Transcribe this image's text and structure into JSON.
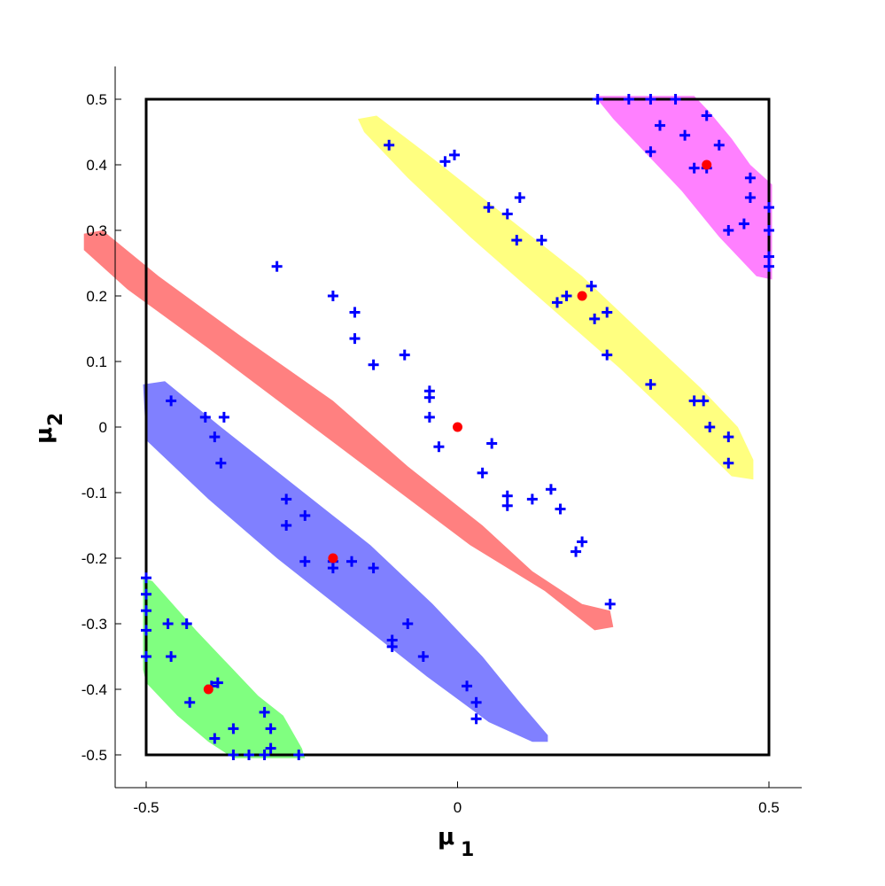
{
  "chart_data": {
    "type": "scatter",
    "xlabel": "μ",
    "xlabel_sub": "1",
    "ylabel": "μ",
    "ylabel_sub": "2",
    "xlim": [
      -0.55,
      0.55
    ],
    "ylim": [
      -0.55,
      0.55
    ],
    "x_ticks": [
      -0.5,
      0,
      0.5
    ],
    "x_tick_labels": [
      "-0.5",
      "0",
      "0.5"
    ],
    "y_ticks": [
      0.5,
      0.4,
      0.3,
      0.2,
      0.1,
      0,
      -0.1,
      -0.2,
      -0.3,
      -0.4,
      -0.5
    ],
    "y_tick_labels": [
      "0.5",
      "0.4",
      "0.3",
      "0.2",
      "0.1",
      "0",
      "-0.1",
      "-0.2",
      "-0.3",
      "-0.4",
      "-0.5"
    ],
    "grid": false,
    "box": {
      "x": [
        -0.5,
        0.5
      ],
      "y": [
        -0.5,
        0.5
      ],
      "color": "#000000"
    },
    "regions": [
      {
        "color": "#ff80ff",
        "polygon": [
          [
            0.22,
            0.505
          ],
          [
            0.38,
            0.505
          ],
          [
            0.405,
            0.48
          ],
          [
            0.44,
            0.44
          ],
          [
            0.47,
            0.4
          ],
          [
            0.505,
            0.37
          ],
          [
            0.505,
            0.225
          ],
          [
            0.48,
            0.23
          ],
          [
            0.42,
            0.29
          ],
          [
            0.36,
            0.36
          ],
          [
            0.3,
            0.42
          ],
          [
            0.25,
            0.47
          ]
        ]
      },
      {
        "color": "#ffff80",
        "polygon": [
          [
            -0.16,
            0.47
          ],
          [
            -0.13,
            0.475
          ],
          [
            -0.04,
            0.41
          ],
          [
            0.08,
            0.32
          ],
          [
            0.2,
            0.23
          ],
          [
            0.3,
            0.14
          ],
          [
            0.39,
            0.06
          ],
          [
            0.45,
            0.0
          ],
          [
            0.475,
            -0.05
          ],
          [
            0.475,
            -0.08
          ],
          [
            0.44,
            -0.075
          ],
          [
            0.36,
            0.0
          ],
          [
            0.26,
            0.09
          ],
          [
            0.14,
            0.19
          ],
          [
            0.02,
            0.29
          ],
          [
            -0.08,
            0.38
          ],
          [
            -0.15,
            0.45
          ]
        ]
      },
      {
        "color": "#ff8080",
        "polygon": [
          [
            -0.6,
            0.295
          ],
          [
            -0.57,
            0.3
          ],
          [
            -0.48,
            0.23
          ],
          [
            -0.35,
            0.14
          ],
          [
            -0.2,
            0.04
          ],
          [
            -0.08,
            -0.06
          ],
          [
            0.04,
            -0.15
          ],
          [
            0.12,
            -0.22
          ],
          [
            0.2,
            -0.27
          ],
          [
            0.245,
            -0.28
          ],
          [
            0.25,
            -0.305
          ],
          [
            0.22,
            -0.31
          ],
          [
            0.14,
            -0.25
          ],
          [
            0.02,
            -0.18
          ],
          [
            -0.12,
            -0.08
          ],
          [
            -0.26,
            0.02
          ],
          [
            -0.4,
            0.12
          ],
          [
            -0.53,
            0.21
          ],
          [
            -0.6,
            0.27
          ]
        ]
      },
      {
        "color": "#8080ff",
        "polygon": [
          [
            -0.505,
            0.065
          ],
          [
            -0.47,
            0.07
          ],
          [
            -0.38,
            0.0
          ],
          [
            -0.26,
            -0.09
          ],
          [
            -0.14,
            -0.18
          ],
          [
            -0.04,
            -0.27
          ],
          [
            0.04,
            -0.35
          ],
          [
            0.1,
            -0.42
          ],
          [
            0.145,
            -0.47
          ],
          [
            0.145,
            -0.48
          ],
          [
            0.12,
            -0.48
          ],
          [
            0.05,
            -0.45
          ],
          [
            -0.05,
            -0.38
          ],
          [
            -0.17,
            -0.29
          ],
          [
            -0.29,
            -0.2
          ],
          [
            -0.4,
            -0.11
          ],
          [
            -0.5,
            -0.02
          ]
        ]
      },
      {
        "color": "#80ff80",
        "polygon": [
          [
            -0.505,
            -0.23
          ],
          [
            -0.49,
            -0.235
          ],
          [
            -0.42,
            -0.31
          ],
          [
            -0.36,
            -0.37
          ],
          [
            -0.32,
            -0.41
          ],
          [
            -0.28,
            -0.44
          ],
          [
            -0.25,
            -0.49
          ],
          [
            -0.245,
            -0.505
          ],
          [
            -0.36,
            -0.505
          ],
          [
            -0.4,
            -0.48
          ],
          [
            -0.45,
            -0.44
          ],
          [
            -0.5,
            -0.39
          ],
          [
            -0.505,
            -0.37
          ]
        ]
      }
    ],
    "series": [
      {
        "color": "#0000ff",
        "marker": "plus",
        "points": [
          [
            0.225,
            0.5
          ],
          [
            0.275,
            0.5
          ],
          [
            0.31,
            0.5
          ],
          [
            0.35,
            0.5
          ],
          [
            0.4,
            0.475
          ],
          [
            0.325,
            0.46
          ],
          [
            0.365,
            0.445
          ],
          [
            0.42,
            0.43
          ],
          [
            0.31,
            0.42
          ],
          [
            0.38,
            0.395
          ],
          [
            0.4,
            0.395
          ],
          [
            0.47,
            0.38
          ],
          [
            0.47,
            0.35
          ],
          [
            0.5,
            0.335
          ],
          [
            0.46,
            0.31
          ],
          [
            0.435,
            0.3
          ],
          [
            0.5,
            0.3
          ],
          [
            0.5,
            0.26
          ],
          [
            0.5,
            0.245
          ],
          [
            -0.11,
            0.43
          ],
          [
            -0.02,
            0.405
          ],
          [
            -0.005,
            0.415
          ],
          [
            0.05,
            0.335
          ],
          [
            0.1,
            0.35
          ],
          [
            0.08,
            0.325
          ],
          [
            0.095,
            0.285
          ],
          [
            0.135,
            0.285
          ],
          [
            0.175,
            0.2
          ],
          [
            0.16,
            0.19
          ],
          [
            0.215,
            0.215
          ],
          [
            0.22,
            0.165
          ],
          [
            0.24,
            0.175
          ],
          [
            0.24,
            0.11
          ],
          [
            0.31,
            0.065
          ],
          [
            0.38,
            0.04
          ],
          [
            0.395,
            0.04
          ],
          [
            0.405,
            0.0
          ],
          [
            0.435,
            -0.015
          ],
          [
            0.435,
            -0.055
          ],
          [
            -0.29,
            0.245
          ],
          [
            -0.2,
            0.2
          ],
          [
            -0.165,
            0.175
          ],
          [
            -0.165,
            0.135
          ],
          [
            -0.135,
            0.095
          ],
          [
            -0.085,
            0.11
          ],
          [
            -0.045,
            0.055
          ],
          [
            -0.045,
            0.045
          ],
          [
            -0.045,
            0.015
          ],
          [
            -0.03,
            -0.03
          ],
          [
            0.055,
            -0.025
          ],
          [
            0.04,
            -0.07
          ],
          [
            0.08,
            -0.105
          ],
          [
            0.08,
            -0.12
          ],
          [
            0.12,
            -0.11
          ],
          [
            0.15,
            -0.095
          ],
          [
            0.165,
            -0.125
          ],
          [
            0.2,
            -0.175
          ],
          [
            0.19,
            -0.19
          ],
          [
            0.245,
            -0.27
          ],
          [
            -0.46,
            0.04
          ],
          [
            -0.405,
            0.015
          ],
          [
            -0.375,
            0.015
          ],
          [
            -0.39,
            -0.015
          ],
          [
            -0.38,
            -0.055
          ],
          [
            -0.275,
            -0.11
          ],
          [
            -0.275,
            -0.15
          ],
          [
            -0.245,
            -0.135
          ],
          [
            -0.245,
            -0.205
          ],
          [
            -0.2,
            -0.205
          ],
          [
            -0.2,
            -0.215
          ],
          [
            -0.17,
            -0.205
          ],
          [
            -0.135,
            -0.215
          ],
          [
            -0.08,
            -0.3
          ],
          [
            -0.105,
            -0.325
          ],
          [
            -0.105,
            -0.335
          ],
          [
            -0.055,
            -0.35
          ],
          [
            0.015,
            -0.395
          ],
          [
            0.03,
            -0.42
          ],
          [
            0.03,
            -0.445
          ],
          [
            -0.5,
            -0.23
          ],
          [
            -0.5,
            -0.255
          ],
          [
            -0.5,
            -0.28
          ],
          [
            -0.5,
            -0.31
          ],
          [
            -0.5,
            -0.35
          ],
          [
            -0.465,
            -0.3
          ],
          [
            -0.435,
            -0.3
          ],
          [
            -0.46,
            -0.35
          ],
          [
            -0.43,
            -0.42
          ],
          [
            -0.385,
            -0.39
          ],
          [
            -0.395,
            -0.395
          ],
          [
            -0.39,
            -0.475
          ],
          [
            -0.36,
            -0.46
          ],
          [
            -0.36,
            -0.5
          ],
          [
            -0.335,
            -0.5
          ],
          [
            -0.31,
            -0.5
          ],
          [
            -0.31,
            -0.435
          ],
          [
            -0.3,
            -0.46
          ],
          [
            -0.3,
            -0.49
          ],
          [
            -0.255,
            -0.5
          ]
        ]
      },
      {
        "color": "#ff0000",
        "marker": "dot",
        "points": [
          [
            0.4,
            0.4
          ],
          [
            0.2,
            0.2
          ],
          [
            0.0,
            0.0
          ],
          [
            -0.2,
            -0.2
          ],
          [
            -0.4,
            -0.4
          ]
        ]
      }
    ]
  }
}
